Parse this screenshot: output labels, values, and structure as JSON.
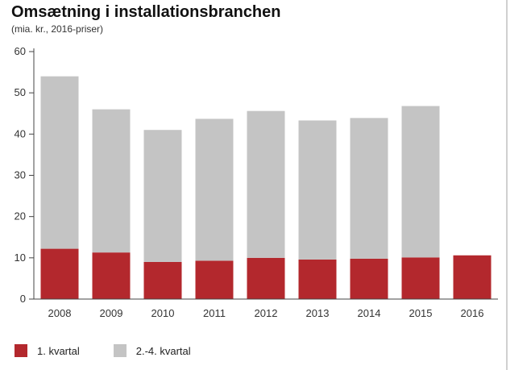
{
  "chart_data": {
    "type": "bar",
    "stacked": true,
    "title": "Omsætning i installationsbranchen",
    "subtitle": "(mia. kr., 2016-priser)",
    "categories": [
      "2008",
      "2009",
      "2010",
      "2011",
      "2012",
      "2013",
      "2014",
      "2015",
      "2016"
    ],
    "series": [
      {
        "name": "1. kvartal",
        "color": "#b3282d",
        "values": [
          12.2,
          11.3,
          9.0,
          9.3,
          10.0,
          9.6,
          9.8,
          10.1,
          10.6
        ]
      },
      {
        "name": "2.-4. kvartal",
        "color": "#c4c4c4",
        "values": [
          41.8,
          34.7,
          32.0,
          34.4,
          35.6,
          33.7,
          34.1,
          36.7,
          0
        ]
      }
    ],
    "yticks": [
      "0",
      "10",
      "20",
      "30",
      "40",
      "50",
      "60"
    ],
    "ylim": [
      0,
      60
    ],
    "grid": false,
    "legend_position": "bottom-left"
  }
}
